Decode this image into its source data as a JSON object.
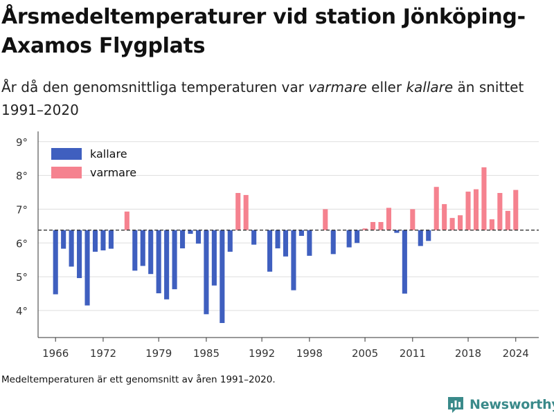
{
  "title": "Årsmedeltemperaturer vid station Jönköping-Axamos Flygplats",
  "subtitle": {
    "part1": "År då den genomsnittliga temperaturen var ",
    "warm_word": "varmare",
    "part2": " eller ",
    "cold_word": "kallare",
    "part3": " än snittet 1991–2020"
  },
  "footnote": "Medeltemperaturen är ett genomsnitt av åren 1991–2020.",
  "logo": {
    "text": "Newsworthy",
    "icon": "bar-chart-logo-icon"
  },
  "colors": {
    "cold": "#3f5fbf",
    "warm": "#f5828f",
    "grid": "#dddddd",
    "baseline": "#333333"
  },
  "chart_data": {
    "type": "bar",
    "title": "Årsmedeltemperaturer vid station Jönköping-Axamos Flygplats",
    "xlabel": "",
    "ylabel": "",
    "baseline": 6.38,
    "ylim": [
      3.2,
      9.2
    ],
    "yticks": [
      4,
      5,
      6,
      7,
      8,
      9
    ],
    "ytick_labels": [
      "4°",
      "5°",
      "6°",
      "7°",
      "8°",
      "9°"
    ],
    "xlim": [
      1963.8,
      2026.9
    ],
    "xticks": [
      1966,
      1972,
      1979,
      1985,
      1992,
      1998,
      2005,
      2011,
      2018,
      2024
    ],
    "grid": true,
    "legend": {
      "position": "top-left",
      "entries": [
        {
          "name": "kallare",
          "color": "#3f5fbf"
        },
        {
          "name": "varmare",
          "color": "#f5828f"
        }
      ]
    },
    "years": [
      1966,
      1967,
      1968,
      1969,
      1970,
      1971,
      1972,
      1973,
      1974,
      1975,
      1976,
      1977,
      1978,
      1979,
      1980,
      1981,
      1982,
      1983,
      1984,
      1985,
      1986,
      1987,
      1988,
      1989,
      1990,
      1991,
      1992,
      1993,
      1994,
      1995,
      1996,
      1997,
      1998,
      1999,
      2000,
      2001,
      2002,
      2003,
      2004,
      2005,
      2006,
      2007,
      2008,
      2009,
      2010,
      2011,
      2012,
      2013,
      2014,
      2015,
      2016,
      2017,
      2018,
      2019,
      2020,
      2021,
      2022,
      2023,
      2024
    ],
    "values": [
      4.48,
      5.83,
      5.3,
      4.96,
      4.15,
      5.74,
      5.78,
      5.83,
      6.37,
      6.93,
      5.18,
      5.32,
      5.08,
      4.51,
      4.33,
      4.63,
      5.84,
      6.27,
      5.98,
      3.89,
      4.74,
      3.63,
      5.74,
      7.48,
      7.42,
      5.95,
      6.38,
      5.15,
      5.84,
      5.6,
      4.6,
      6.21,
      5.62,
      6.38,
      7.0,
      5.67,
      6.38,
      5.87,
      6.0,
      6.43,
      6.62,
      6.62,
      7.04,
      6.3,
      4.5,
      7.0,
      5.91,
      6.06,
      7.66,
      7.15,
      6.74,
      6.82,
      7.52,
      7.59,
      8.24,
      6.7,
      7.48,
      6.95,
      7.57
    ]
  }
}
